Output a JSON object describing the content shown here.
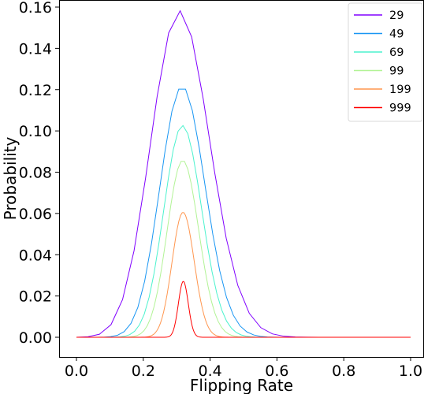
{
  "chart_data": {
    "type": "line",
    "title": "",
    "xlabel": "Flipping Rate",
    "ylabel": "Probability",
    "xlim": [
      -0.05,
      1.0
    ],
    "ylim": [
      -0.006,
      0.165
    ],
    "grid": false,
    "legend_position": "top-right",
    "x_ticks": [
      {
        "value": 0.0,
        "label": "0.0"
      },
      {
        "value": 0.2,
        "label": "0.2"
      },
      {
        "value": 0.4,
        "label": "0.4"
      },
      {
        "value": 0.6,
        "label": "0.6"
      },
      {
        "value": 0.8,
        "label": "0.8"
      },
      {
        "value": 1.0,
        "label": "1.0"
      }
    ],
    "y_ticks": [
      {
        "value": 0.0,
        "label": "0.00"
      },
      {
        "value": 0.02,
        "label": "0.02"
      },
      {
        "value": 0.04,
        "label": "0.04"
      },
      {
        "value": 0.06,
        "label": "0.06"
      },
      {
        "value": 0.08,
        "label": "0.08"
      },
      {
        "value": 0.1,
        "label": "0.10"
      },
      {
        "value": 0.12,
        "label": "0.12"
      },
      {
        "value": 0.14,
        "label": "0.14"
      },
      {
        "value": 0.16,
        "label": "0.16"
      }
    ],
    "series": [
      {
        "name": "29",
        "color": "#8000ff",
        "n": 29,
        "p": 0.315
      },
      {
        "name": "49",
        "color": "#1996f3",
        "n": 49,
        "p": 0.32
      },
      {
        "name": "69",
        "color": "#4cf2ce",
        "n": 69,
        "p": 0.32
      },
      {
        "name": "99",
        "color": "#b2f396",
        "n": 99,
        "p": 0.32
      },
      {
        "name": "199",
        "color": "#ff964f",
        "n": 199,
        "p": 0.32
      },
      {
        "name": "999",
        "color": "#ff0000",
        "n": 999,
        "p": 0.32
      }
    ]
  }
}
